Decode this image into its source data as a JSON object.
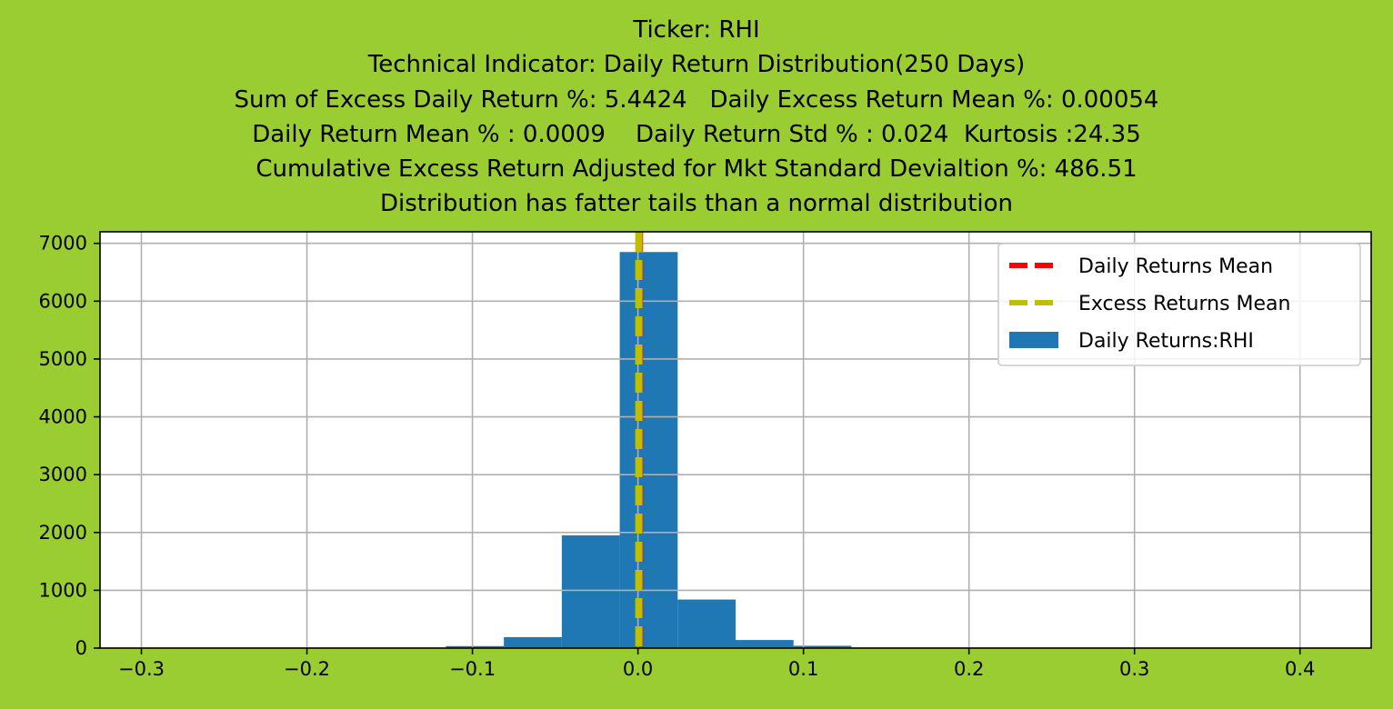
{
  "chart_data": {
    "type": "bar",
    "title_lines": [
      "Ticker: RHI",
      "Technical Indicator: Daily Return Distribution(250 Days)",
      "Sum of Excess Daily Return %: 5.4424   Daily Excess Return Mean %: 0.00054",
      "Daily Return Mean % : 0.0009    Daily Return Std % : 0.024  Kurtosis :24.35",
      "Cumulative Excess Return Adjusted for Mkt Standard Devialtion %: 486.51",
      "Distribution has fatter tails than a normal distribution"
    ],
    "xlabel": "",
    "ylabel": "",
    "xlim": [
      -0.325,
      0.443
    ],
    "ylim": [
      0,
      7200
    ],
    "x_ticks": [
      -0.3,
      -0.2,
      -0.1,
      0.0,
      0.1,
      0.2,
      0.3,
      0.4
    ],
    "x_tick_labels": [
      "−0.3",
      "−0.2",
      "−0.1",
      "0.0",
      "0.1",
      "0.2",
      "0.3",
      "0.4"
    ],
    "y_ticks": [
      0,
      1000,
      2000,
      3000,
      4000,
      5000,
      6000,
      7000
    ],
    "y_tick_labels": [
      "0",
      "1000",
      "2000",
      "3000",
      "4000",
      "5000",
      "6000",
      "7000"
    ],
    "grid": true,
    "legend_position": "upper-right",
    "histogram": {
      "name": "Daily Returns:RHI",
      "color": "#1F77B4",
      "bins": [
        {
          "start": -0.116,
          "end": -0.081,
          "count": 35
        },
        {
          "start": -0.081,
          "end": -0.046,
          "count": 190
        },
        {
          "start": -0.046,
          "end": -0.011,
          "count": 1950
        },
        {
          "start": -0.011,
          "end": 0.024,
          "count": 6850
        },
        {
          "start": 0.024,
          "end": 0.059,
          "count": 840
        },
        {
          "start": 0.059,
          "end": 0.094,
          "count": 140
        },
        {
          "start": 0.094,
          "end": 0.129,
          "count": 40
        }
      ]
    },
    "vlines": [
      {
        "name": "Daily Returns Mean",
        "x": 0.0009,
        "color": "#FF0000"
      },
      {
        "name": "Excess Returns Mean",
        "x": 0.00054,
        "color": "#BFBF00"
      }
    ],
    "legend": [
      {
        "label": "Daily Returns Mean",
        "kind": "dashed-line",
        "color": "#FF0000"
      },
      {
        "label": "Excess Returns Mean",
        "kind": "dashed-line",
        "color": "#BFBF00"
      },
      {
        "label": "Daily Returns:RHI",
        "kind": "patch",
        "color": "#1F77B4"
      }
    ]
  }
}
